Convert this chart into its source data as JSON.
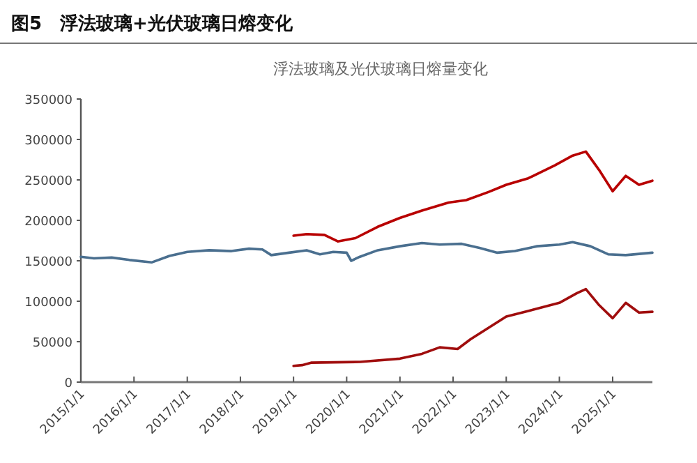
{
  "chart_data": {
    "type": "line",
    "title": "图5　浮法玻璃+光伏玻璃日熔变化",
    "subtitle": "浮法玻璃及光伏玻璃日熔量变化",
    "xlim": [
      "2015-01-01",
      "2025-10-01"
    ],
    "xticks": [
      {
        "value": "2015-01-01",
        "label": "2015/1/1"
      },
      {
        "value": "2016-01-01",
        "label": "2016/1/1"
      },
      {
        "value": "2017-01-01",
        "label": "2017/1/1"
      },
      {
        "value": "2018-01-01",
        "label": "2018/1/1"
      },
      {
        "value": "2019-01-01",
        "label": "2019/1/1"
      },
      {
        "value": "2020-01-01",
        "label": "2020/1/1"
      },
      {
        "value": "2021-01-01",
        "label": "2021/1/1"
      },
      {
        "value": "2022-01-01",
        "label": "2022/1/1"
      },
      {
        "value": "2023-01-01",
        "label": "2023/1/1"
      },
      {
        "value": "2024-01-01",
        "label": "2024/1/1"
      },
      {
        "value": "2025-01-01",
        "label": "2025/1/1"
      }
    ],
    "ylim": [
      0,
      350000
    ],
    "yticks": [
      0,
      50000,
      100000,
      150000,
      200000,
      250000,
      300000,
      350000
    ],
    "grid": false,
    "marker": "none",
    "line_style": "solid",
    "series": [
      {
        "color": "#4a6f8f",
        "x": [
          "2015-01",
          "2015-04",
          "2015-08",
          "2015-12",
          "2016-05",
          "2016-09",
          "2017-01",
          "2017-06",
          "2017-11",
          "2018-03",
          "2018-06",
          "2018-08",
          "2018-12",
          "2019-04",
          "2019-07",
          "2019-10",
          "2020-01",
          "2020-02",
          "2020-04",
          "2020-08",
          "2021-01",
          "2021-06",
          "2021-10",
          "2022-03",
          "2022-07",
          "2022-11",
          "2023-03",
          "2023-08",
          "2024-01",
          "2024-04",
          "2024-08",
          "2024-12",
          "2025-04",
          "2025-10"
        ],
        "values": [
          155000,
          153000,
          154000,
          151000,
          148000,
          156000,
          161000,
          163000,
          162000,
          165000,
          164000,
          157000,
          160000,
          163000,
          158000,
          161000,
          160000,
          150000,
          155000,
          163000,
          168000,
          172000,
          170000,
          171000,
          166000,
          160000,
          162000,
          168000,
          170000,
          173000,
          168000,
          158000,
          157000,
          160000
        ]
      },
      {
        "color": "#b80000",
        "x": [
          "2019-01",
          "2019-04",
          "2019-08",
          "2019-11",
          "2020-03",
          "2020-08",
          "2021-01",
          "2021-06",
          "2021-12",
          "2022-04",
          "2022-09",
          "2023-01",
          "2023-06",
          "2023-12",
          "2024-04",
          "2024-07",
          "2024-10",
          "2025-01",
          "2025-04",
          "2025-07",
          "2025-10"
        ],
        "values": [
          181000,
          183000,
          182000,
          174000,
          178000,
          192000,
          203000,
          212000,
          222000,
          225000,
          235000,
          244000,
          252000,
          268000,
          280000,
          285000,
          262000,
          236000,
          255000,
          244000,
          249000
        ]
      },
      {
        "color": "#a00d0d",
        "x": [
          "2019-01",
          "2019-03",
          "2019-05",
          "2020-04",
          "2021-01",
          "2021-06",
          "2021-10",
          "2022-02",
          "2022-05",
          "2023-01",
          "2023-06",
          "2024-01",
          "2024-05",
          "2024-07",
          "2024-10",
          "2025-01",
          "2025-04",
          "2025-07",
          "2025-10"
        ],
        "values": [
          20000,
          21000,
          24000,
          25000,
          29000,
          35000,
          43000,
          41000,
          53000,
          81000,
          88000,
          98000,
          110000,
          115000,
          95000,
          79000,
          98000,
          86000,
          87000
        ]
      }
    ]
  }
}
